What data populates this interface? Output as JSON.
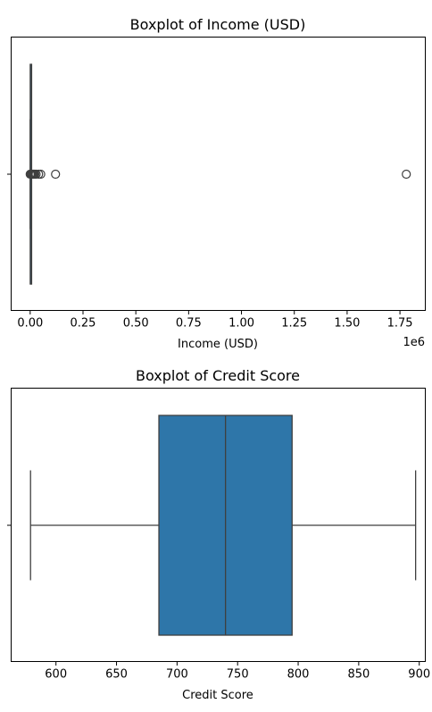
{
  "chart_data": [
    {
      "type": "box",
      "title": "Boxplot of Income (USD)",
      "xlabel": "Income (USD)",
      "ylabel": "",
      "offset_text": "1e6",
      "xlim": [
        -0.09,
        1.87
      ],
      "xticks": [
        0.0,
        0.25,
        0.5,
        0.75,
        1.0,
        1.25,
        1.5,
        1.75
      ],
      "xtick_labels": [
        "0.00",
        "0.25",
        "0.50",
        "0.75",
        "1.00",
        "1.25",
        "1.50",
        "1.75"
      ],
      "box": {
        "whisker_low": 0.0,
        "q1": 0.0005,
        "median": 0.001,
        "q3": 0.0015,
        "whisker_high": 0.003
      },
      "outliers": [
        0.0,
        0.003,
        0.006,
        0.01,
        0.014,
        0.018,
        0.022,
        0.028,
        0.04,
        0.05,
        0.12,
        1.78
      ],
      "box_color": "#1f77b4"
    },
    {
      "type": "box",
      "title": "Boxplot of Credit Score",
      "xlabel": "Credit Score",
      "ylabel": "",
      "xlim": [
        563,
        905
      ],
      "xticks": [
        600,
        650,
        700,
        750,
        800,
        850,
        900
      ],
      "xtick_labels": [
        "600",
        "650",
        "700",
        "750",
        "800",
        "850",
        "900"
      ],
      "box": {
        "whisker_low": 579,
        "q1": 685,
        "median": 740,
        "q3": 795,
        "whisker_high": 897
      },
      "outliers": [],
      "box_color": "#2e76a9"
    }
  ]
}
